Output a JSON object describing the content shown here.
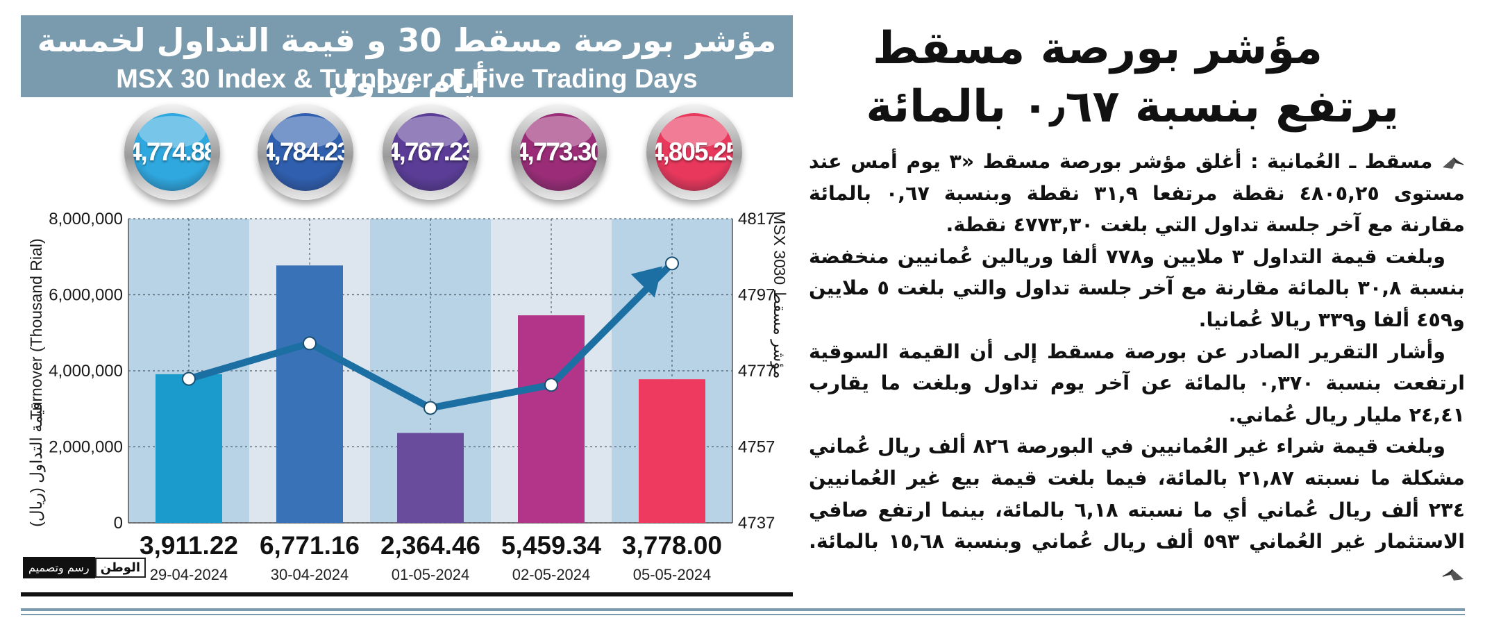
{
  "infographic": {
    "title_ar": "مؤشر بورصة مسقط 30 و قيمة التداول لخمسة أيام تداول",
    "title_en": "MSX 30 Index & Turnover of Five Trading Days",
    "bubbles": [
      {
        "value": "4,774.88",
        "color": "#2fa8df"
      },
      {
        "value": "4,784.23",
        "color": "#2f5fae"
      },
      {
        "value": "4,767.23",
        "color": "#5b3d97"
      },
      {
        "value": "4,773.30",
        "color": "#9b2d78"
      },
      {
        "value": "4,805.25",
        "color": "#e8385c"
      }
    ],
    "credit": {
      "logo": "الوطن",
      "text": "رسم وتصميم"
    }
  },
  "chart_data": {
    "type": "bar",
    "title": "MSX 30 Index & Turnover of Five Trading Days",
    "categories": [
      "29-04-2024",
      "30-04-2024",
      "01-05-2024",
      "02-05-2024",
      "05-05-2024"
    ],
    "series": [
      {
        "name": "Turnover (Thousand Rial)",
        "type": "bar",
        "axis": "left",
        "values": [
          3911.22,
          6771.16,
          2364.46,
          5459.34,
          3778.0
        ],
        "colors": [
          "#1a9bcb",
          "#3a72b8",
          "#6a4c9c",
          "#b2358a",
          "#ee3a5e"
        ]
      },
      {
        "name": "MSX 30",
        "type": "line",
        "axis": "right",
        "values": [
          4774.88,
          4784.23,
          4767.23,
          4773.3,
          4805.25
        ],
        "color": "#1b6fa2"
      }
    ],
    "value_labels": [
      "3,911.22",
      "6,771.16",
      "2,364.46",
      "5,459.34",
      "3,778.00"
    ],
    "ylabel_left": "Turnover (Thousand Rial)",
    "ylabel_left_ar": "قيمة التداول (ريال)",
    "ylabel_right": "MSX 30",
    "ylabel_right_ar": "مؤشر مسقط 30",
    "left_ticks": [
      "0",
      "2,000,000",
      "4,000,000",
      "6,000,000",
      "8,000,000"
    ],
    "right_ticks": [
      "4737",
      "4757",
      "4777",
      "4797",
      "4817"
    ],
    "ylim_left": [
      0,
      8000000
    ],
    "ylim_right": [
      4737,
      4817
    ],
    "grid": true
  },
  "article": {
    "headline_1": "مؤشر بورصة مسقط",
    "headline_2": "يرتفع بنسبة ٠٫٦٧ بالمائة",
    "paragraphs": [
      "مسقط ـ العُمانية : أغلق مؤشر بورصة مسقط «٣ يوم أمس عند مستوى ٤٨٠٥,٢٥ نقطة مرتفعا ٣١,٩ نقطة وبنسبة ٠,٦٧ بالمائة مقارنة مع آخر جلسة تداول التي بلغت ٤٧٧٣,٣٠ نقطة.",
      "وبلغت قيمة التداول ٣ ملايين و٧٧٨ ألفا وريالين عُمانيين منخفضة بنسبة ٣٠,٨ بالمائة مقارنة مع آخر جلسة تداول والتي بلغت ٥ ملايين و٤٥٩ ألفا و٣٣٩ ريالا عُمانيا.",
      "وأشار التقرير الصادر عن بورصة مسقط إلى أن القيمة السوقية ارتفعت بنسبة ٠,٣٧٠ بالمائة عن آخر يوم تداول وبلغت ما يقارب ٢٤,٤١ مليار ريال عُماني.",
      "وبلغت قيمة شراء غير العُمانيين في البورصة ٨٢٦ ألف ريال عُماني مشكلة ما نسبته ٢١,٨٧ بالمائة، فيما بلغت قيمة بيع غير العُمانيين ٢٣٤ ألف ريال عُماني أي ما نسبته ٦,١٨ بالمائة، بينما ارتفع صافي الاستثمار غير العُماني ٥٩٣ ألف ريال عُماني وبنسبة ١٥,٦٨ بالمائة."
    ]
  }
}
